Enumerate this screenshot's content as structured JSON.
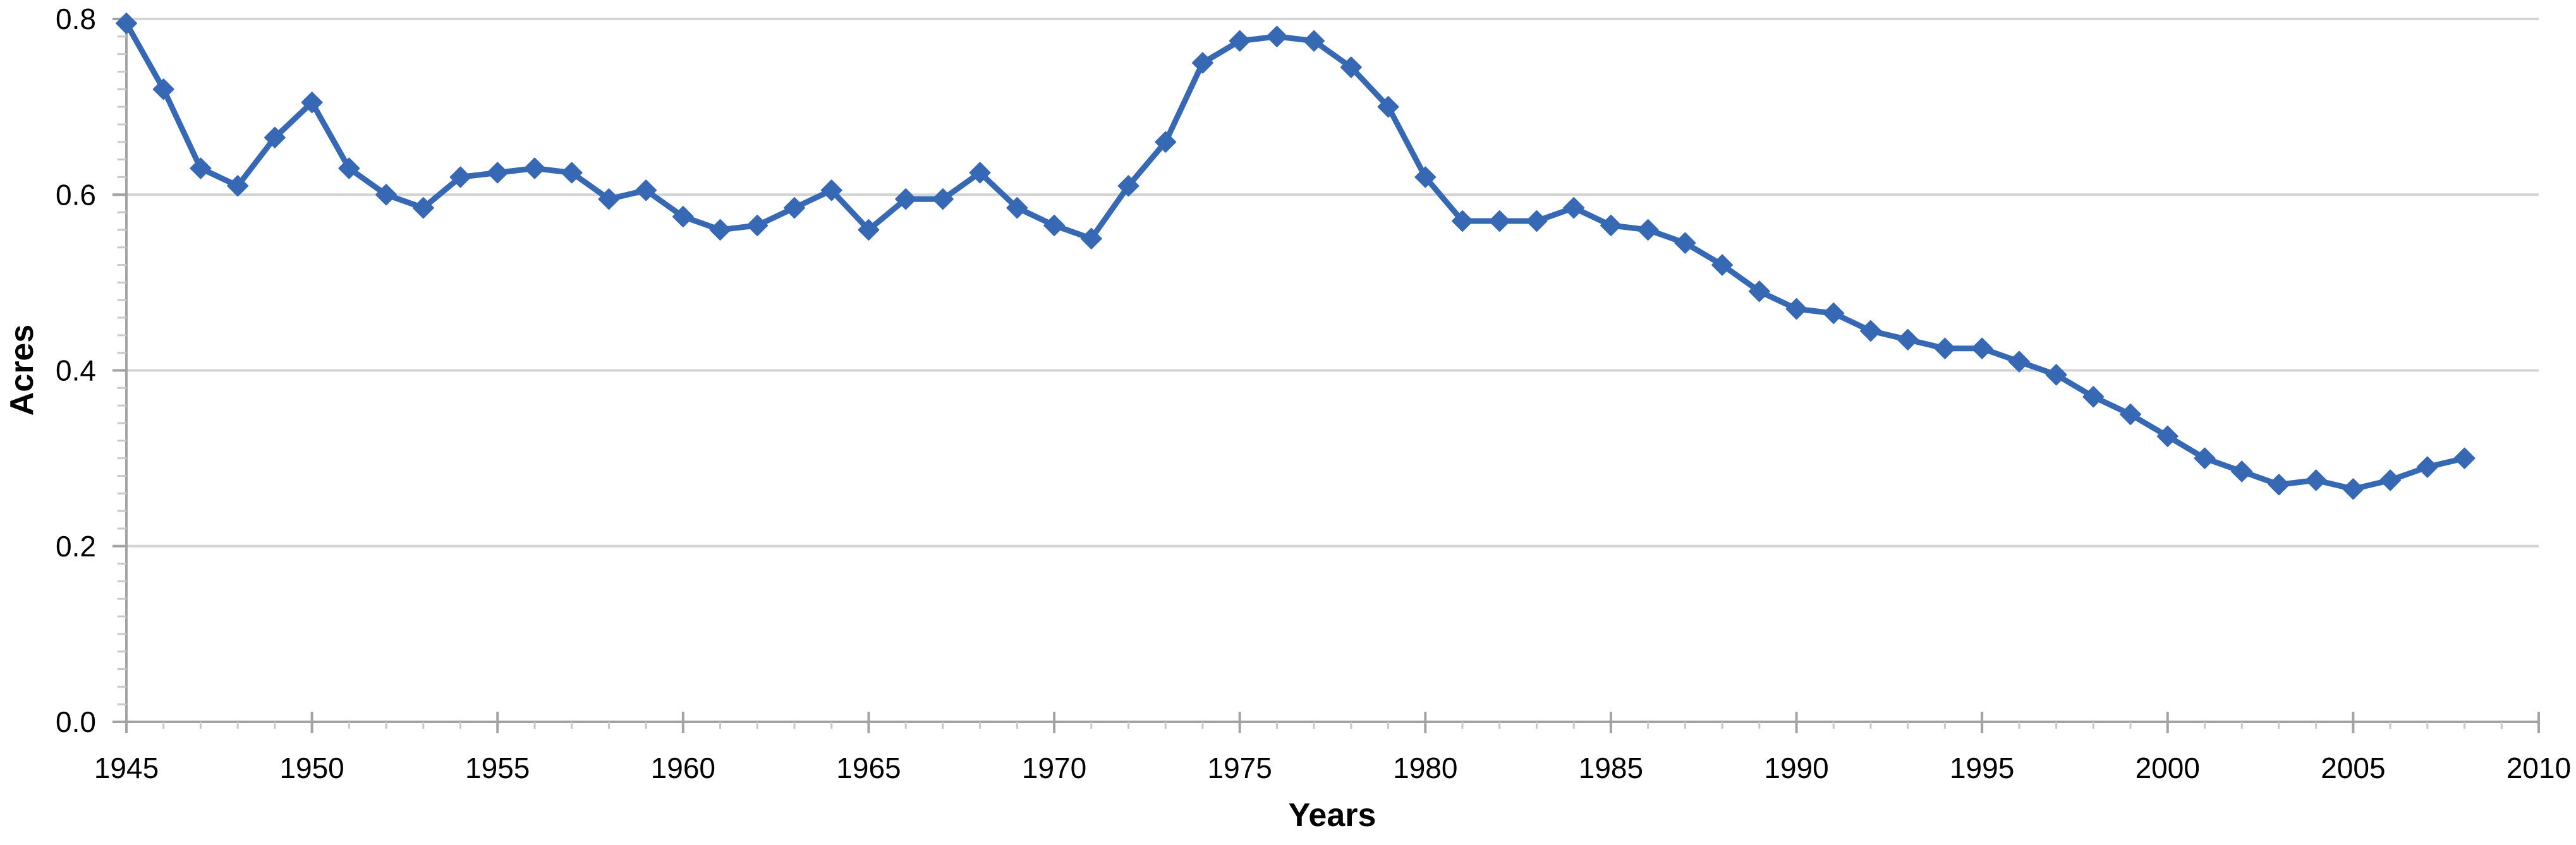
{
  "chart_data": {
    "type": "line",
    "title": "",
    "xlabel": "Years",
    "ylabel": "Acres",
    "legend_position": "none",
    "grid": "horizontal-major-only",
    "x": [
      1945,
      1946,
      1947,
      1948,
      1949,
      1950,
      1951,
      1952,
      1953,
      1954,
      1955,
      1956,
      1957,
      1958,
      1959,
      1960,
      1961,
      1962,
      1963,
      1964,
      1965,
      1966,
      1967,
      1968,
      1969,
      1970,
      1971,
      1972,
      1973,
      1974,
      1975,
      1976,
      1977,
      1978,
      1979,
      1980,
      1981,
      1982,
      1983,
      1984,
      1985,
      1986,
      1987,
      1988,
      1989,
      1990,
      1991,
      1992,
      1993,
      1994,
      1995,
      1996,
      1997,
      1998,
      1999,
      2000,
      2001,
      2002,
      2003,
      2004,
      2005,
      2006,
      2007,
      2008
    ],
    "values": [
      0.795,
      0.72,
      0.63,
      0.61,
      0.665,
      0.705,
      0.63,
      0.6,
      0.585,
      0.62,
      0.625,
      0.63,
      0.625,
      0.595,
      0.605,
      0.575,
      0.56,
      0.565,
      0.585,
      0.605,
      0.56,
      0.595,
      0.595,
      0.625,
      0.585,
      0.565,
      0.55,
      0.61,
      0.66,
      0.75,
      0.775,
      0.78,
      0.775,
      0.745,
      0.7,
      0.62,
      0.57,
      0.57,
      0.57,
      0.585,
      0.565,
      0.56,
      0.545,
      0.52,
      0.49,
      0.47,
      0.465,
      0.445,
      0.435,
      0.425,
      0.425,
      0.41,
      0.395,
      0.37,
      0.35,
      0.325,
      0.3,
      0.285,
      0.27,
      0.275,
      0.265,
      0.275,
      0.29,
      0.3
    ],
    "xlim": [
      1945,
      2010
    ],
    "ylim": [
      0.0,
      0.8
    ],
    "x_major_tick_step": 5,
    "x_minor_tick_step": 1,
    "y_major_tick_step": 0.2,
    "y_minor_tick_step": 0.02,
    "x_tick_labels": [
      "1945",
      "1950",
      "1955",
      "1960",
      "1965",
      "1970",
      "1975",
      "1980",
      "1985",
      "1990",
      "1995",
      "2000",
      "2005",
      "2010"
    ],
    "y_tick_labels": [
      "0.0",
      "0.2",
      "0.4",
      "0.6",
      "0.8"
    ],
    "marker": "diamond",
    "colors": {
      "line": "#3768B3",
      "marker": "#3768B3",
      "gridline": "#D4D4D4",
      "axis": "#A3A3A3",
      "minor_tick": "#C9C9C9",
      "text": "#000000",
      "background": "#FFFFFF"
    }
  }
}
